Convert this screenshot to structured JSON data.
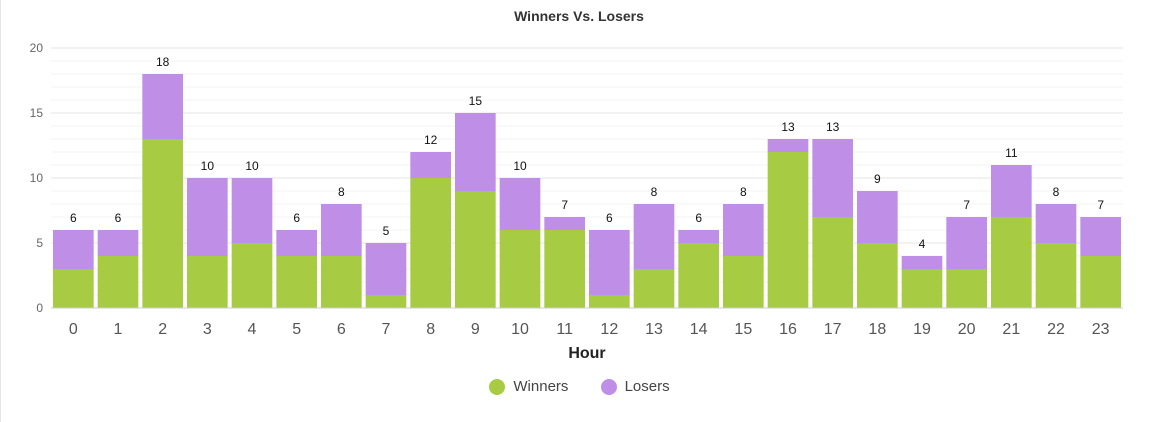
{
  "chart_data": {
    "type": "bar",
    "stacked": true,
    "title": "Winners Vs. Losers",
    "xlabel": "Hour",
    "ylabel": "",
    "ylim": [
      0,
      20
    ],
    "yticks": [
      "0",
      "5",
      "10",
      "15",
      "20"
    ],
    "categories": [
      "0",
      "1",
      "2",
      "3",
      "4",
      "5",
      "6",
      "7",
      "8",
      "9",
      "10",
      "11",
      "12",
      "13",
      "14",
      "15",
      "16",
      "17",
      "18",
      "19",
      "20",
      "21",
      "22",
      "23"
    ],
    "series": [
      {
        "name": "Winners",
        "color": "#a7cc43",
        "values": [
          3,
          4,
          13,
          4,
          5,
          4,
          4,
          1,
          10,
          9,
          6,
          6,
          1,
          3,
          5,
          4,
          12,
          7,
          5,
          3,
          3,
          7,
          5,
          4
        ]
      },
      {
        "name": "Losers",
        "color": "#bf8fe8",
        "values": [
          3,
          2,
          5,
          6,
          5,
          2,
          4,
          4,
          2,
          6,
          4,
          1,
          5,
          5,
          1,
          4,
          1,
          6,
          4,
          1,
          4,
          4,
          3,
          3
        ]
      }
    ],
    "totals": [
      6,
      6,
      18,
      10,
      10,
      6,
      8,
      5,
      12,
      15,
      10,
      7,
      6,
      8,
      6,
      8,
      13,
      13,
      9,
      4,
      7,
      11,
      8,
      7
    ],
    "legend": "bottom-center",
    "grid": true
  }
}
